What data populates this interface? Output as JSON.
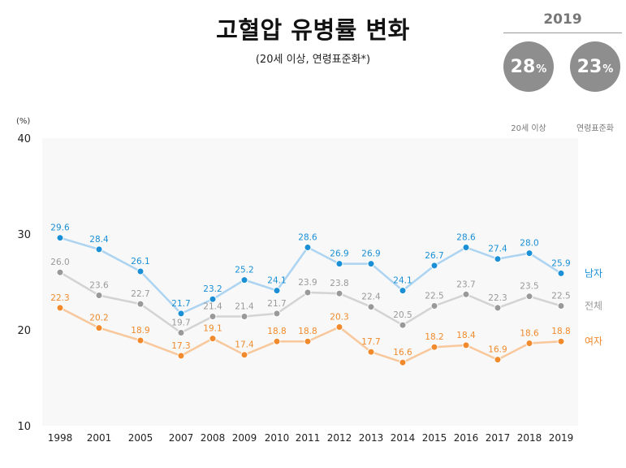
{
  "title": "고혈압 유병률 변화",
  "subtitle": "(20세 이상, 연령표준화*)",
  "badge": {
    "year": "2019",
    "items": [
      {
        "value": "28",
        "unit": "%",
        "caption": "20세 이상"
      },
      {
        "value": "23",
        "unit": "%",
        "caption": "연령표준화"
      }
    ]
  },
  "chart_data": {
    "type": "line",
    "ylabel": "(%)",
    "ylim": [
      10,
      40
    ],
    "yticks": [
      10,
      20,
      30,
      40
    ],
    "x": [
      "1998",
      "2001",
      "2005",
      "2007",
      "2008",
      "2009",
      "2010",
      "2011",
      "2012",
      "2013",
      "2014",
      "2015",
      "2016",
      "2017",
      "2018",
      "2019"
    ],
    "series": [
      {
        "name": "남자",
        "color": "#1a8fd6",
        "line_color": "#acd4f2",
        "values": [
          29.6,
          28.4,
          26.1,
          21.7,
          23.2,
          25.2,
          24.1,
          28.6,
          26.9,
          26.9,
          24.1,
          26.7,
          28.6,
          27.4,
          28.0,
          25.9
        ]
      },
      {
        "name": "전체",
        "color": "#999999",
        "line_color": "#d3d3d3",
        "values": [
          26.0,
          23.6,
          22.7,
          19.7,
          21.4,
          21.4,
          21.7,
          23.9,
          23.8,
          22.4,
          20.5,
          22.5,
          23.7,
          22.3,
          23.5,
          22.5
        ]
      },
      {
        "name": "여자",
        "color": "#f08a2c",
        "line_color": "#f8c79b",
        "values": [
          22.3,
          20.2,
          18.9,
          17.3,
          19.1,
          17.4,
          18.8,
          18.8,
          20.3,
          17.7,
          16.6,
          18.2,
          18.4,
          16.9,
          18.6,
          18.8
        ]
      }
    ],
    "grid": false,
    "legend": "right-end-labels"
  }
}
